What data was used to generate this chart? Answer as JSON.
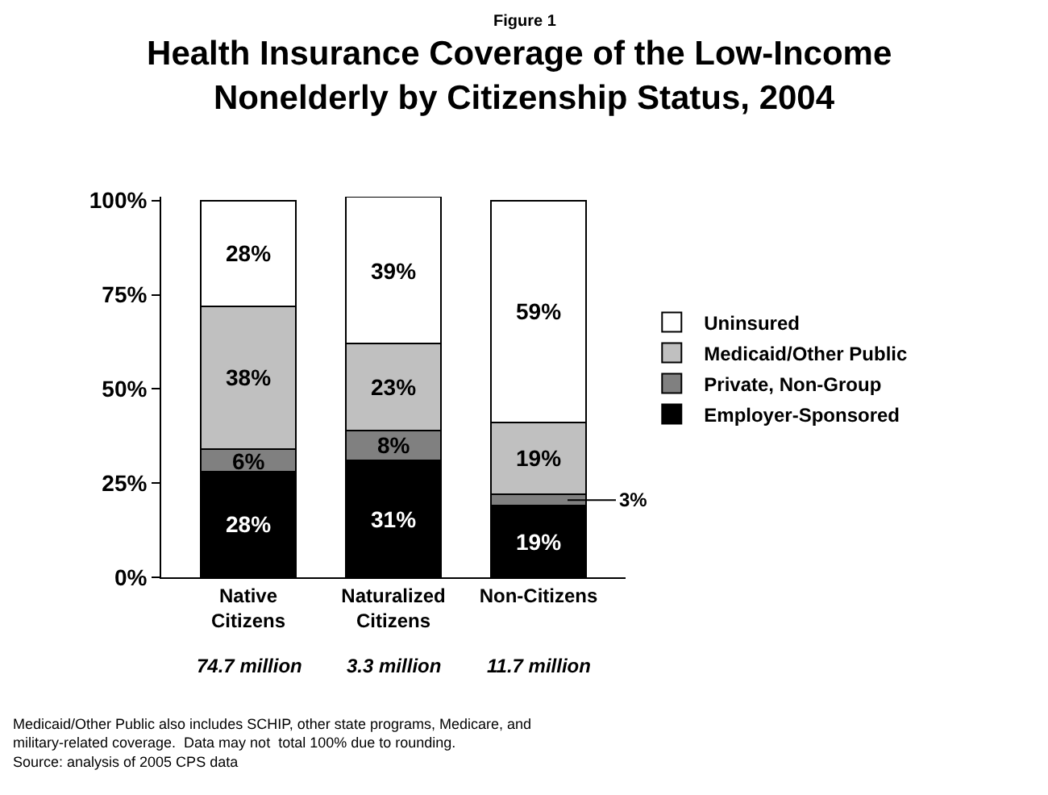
{
  "chart_data": {
    "type": "bar",
    "stacked": true,
    "title": "Health Insurance Coverage of the Low-Income Nonelderly by Citizenship Status, 2004",
    "categories": [
      "Native Citizens",
      "Naturalized Citizens",
      "Non-Citizens"
    ],
    "series": [
      {
        "name": "Employer-Sponsored",
        "color": "#000000",
        "values": [
          28,
          31,
          19
        ],
        "value_labels": [
          "28%",
          "31%",
          "19%"
        ]
      },
      {
        "name": "Private, Non-Group",
        "color": "#808080",
        "values": [
          6,
          8,
          3
        ],
        "value_labels": [
          "6%",
          "8%",
          "3%"
        ]
      },
      {
        "name": "Medicaid/Other Public",
        "color": "#c0c0c0",
        "values": [
          38,
          23,
          19
        ],
        "value_labels": [
          "38%",
          "23%",
          "19%"
        ]
      },
      {
        "name": "Uninsured",
        "color": "#ffffff",
        "values": [
          28,
          39,
          59
        ],
        "value_labels": [
          "28%",
          "39%",
          "59%"
        ]
      }
    ],
    "ylim": [
      0,
      101
    ],
    "yticks": [
      {
        "value": 0,
        "label": "0%"
      },
      {
        "value": 25,
        "label": "25%"
      },
      {
        "value": 50,
        "label": "50%"
      },
      {
        "value": 75,
        "label": "75%"
      },
      {
        "value": 100,
        "label": "100%"
      }
    ],
    "legend": "right",
    "annotations": [
      "Figure 1",
      "74.7 million",
      "3.3 million",
      "11.7 million",
      "Medicaid/Other Public also includes SCHIP, other state programs, Medicare, and military-related coverage.  Data may not  total 100% due to rounding.",
      "Source: analysis of 2005 CPS data"
    ]
  }
}
